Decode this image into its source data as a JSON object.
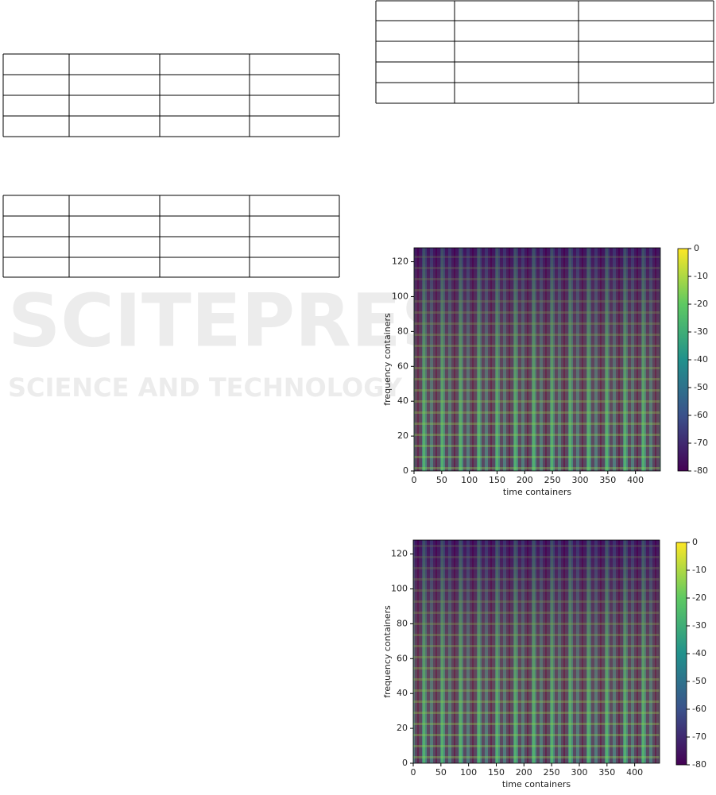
{
  "watermark": {
    "title": "SCITEPRESS",
    "subtitle": "SCIENCE AND TECHNOLOGY PUBLICATIONS"
  },
  "chart_data": [
    {
      "type": "heatmap",
      "xlabel": "time containers",
      "ylabel": "frequency containers",
      "xlim": [
        0,
        445
      ],
      "xticks": [
        0,
        50,
        100,
        150,
        200,
        250,
        300,
        350,
        400
      ],
      "ylim": [
        0,
        128
      ],
      "yticks": [
        0,
        20,
        40,
        60,
        80,
        100,
        120
      ],
      "clim": [
        -80,
        0
      ],
      "cticks": [
        0,
        -10,
        -20,
        -30,
        -40,
        -50,
        -60,
        -70,
        -80
      ]
    },
    {
      "type": "heatmap",
      "xlabel": "time containers",
      "ylabel": "frequency containers",
      "xlim": [
        0,
        445
      ],
      "xticks": [
        0,
        50,
        100,
        150,
        200,
        250,
        300,
        350,
        400
      ],
      "ylim": [
        0,
        128
      ],
      "yticks": [
        0,
        20,
        40,
        60,
        80,
        100,
        120
      ],
      "clim": [
        -80,
        0
      ],
      "cticks": [
        0,
        -10,
        -20,
        -30,
        -40,
        -50,
        -60,
        -70,
        -80
      ]
    }
  ]
}
